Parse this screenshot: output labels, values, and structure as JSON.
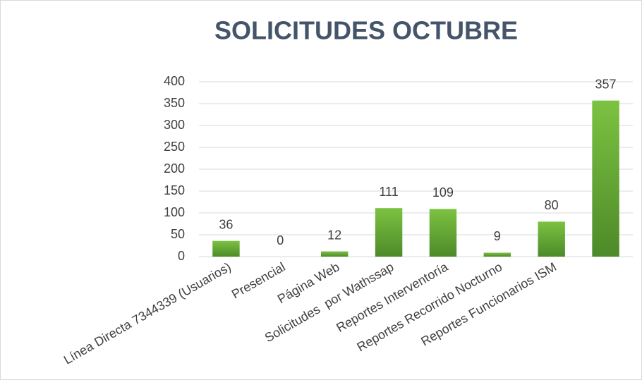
{
  "chart_data": {
    "type": "bar",
    "title": "SOLICITUDES OCTUBRE",
    "categories": [
      "Línea Directa 7344339 (Usuarios)",
      "Presencial",
      "Página Web",
      "Solicitudes  por Wathssap",
      "Reportes Interventoría",
      "Reportes Recorrido Nocturno",
      "Reportes Funcionarios ISM",
      null
    ],
    "values": [
      36,
      0,
      12,
      111,
      109,
      9,
      80,
      357
    ],
    "color": "#64a834",
    "ylim": [
      0,
      400
    ],
    "yticks": [
      0,
      50,
      100,
      150,
      200,
      250,
      300,
      350,
      400
    ],
    "grid": true
  }
}
